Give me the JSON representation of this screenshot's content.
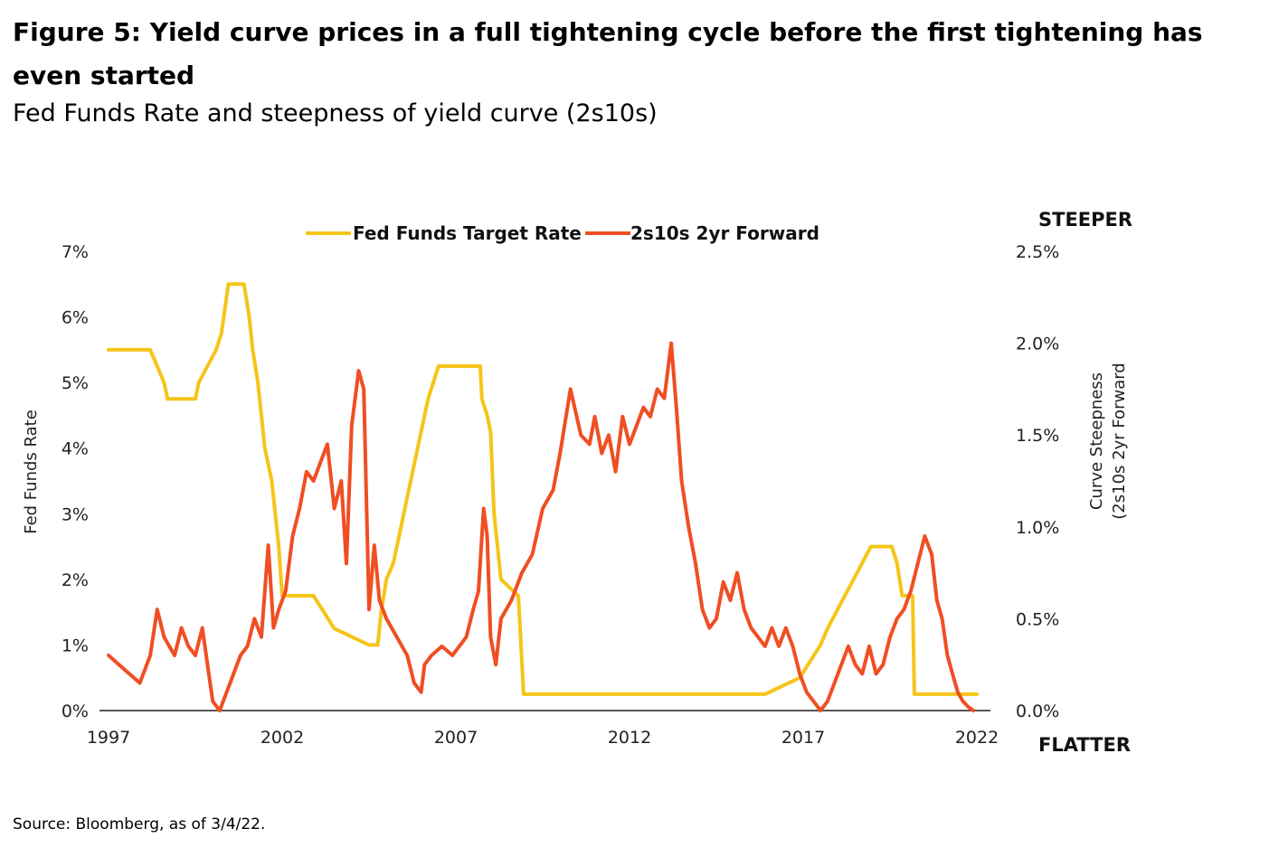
{
  "title": "Figure 5: Yield curve prices in a full tightening cycle before the first tightening has even started",
  "subtitle": "Fed Funds Rate and steepness of yield curve (2s10s)",
  "source": "Source: Bloomberg, as of 3/4/22.",
  "chart_data": {
    "type": "line",
    "x_range": [
      1997,
      2022
    ],
    "x_ticks": [
      "1997",
      "2002",
      "2007",
      "2012",
      "2017",
      "2022"
    ],
    "y_left": {
      "label": "Fed Funds Rate",
      "range": [
        0,
        7
      ],
      "ticks": [
        "0%",
        "1%",
        "2%",
        "3%",
        "4%",
        "5%",
        "6%",
        "7%"
      ]
    },
    "y_right": {
      "label_line1": "Curve Steepness",
      "label_line2": "(2s10s 2yr Forward",
      "range": [
        0,
        2.5
      ],
      "ticks": [
        "0.0%",
        "0.5%",
        "1.0%",
        "1.5%",
        "2.0%",
        "2.5%"
      ]
    },
    "top_right_label": "STEEPER",
    "bottom_right_label": "FLATTER",
    "legend_position": "top-center",
    "grid": false,
    "colors": {
      "fed_funds": "#F5C518",
      "spread": "#F04E23"
    },
    "series": [
      {
        "name": "Fed Funds Target Rate",
        "axis": "left",
        "color": "#F5C518",
        "x": [
          1997.0,
          1998.2,
          1998.6,
          1998.7,
          1998.85,
          1999.5,
          1999.6,
          1999.85,
          2000.1,
          2000.25,
          2000.45,
          2000.9,
          2001.05,
          2001.15,
          2001.3,
          2001.4,
          2001.5,
          2001.6,
          2001.7,
          2001.8,
          2001.9,
          2002.0,
          2002.9,
          2003.5,
          2004.5,
          2004.75,
          2004.85,
          2005.0,
          2005.2,
          2005.4,
          2005.6,
          2005.8,
          2006.0,
          2006.2,
          2006.5,
          2007.7,
          2007.75,
          2007.9,
          2008.0,
          2008.1,
          2008.3,
          2008.8,
          2008.95,
          2015.9,
          2016.9,
          2017.2,
          2017.5,
          2017.7,
          2017.95,
          2018.2,
          2018.45,
          2018.7,
          2018.95,
          2019.55,
          2019.7,
          2019.85,
          2020.15,
          2020.2,
          2022.0
        ],
        "y": [
          5.5,
          5.5,
          5.0,
          4.75,
          4.75,
          4.75,
          5.0,
          5.25,
          5.5,
          5.75,
          6.5,
          6.5,
          6.0,
          5.5,
          5.0,
          4.5,
          4.0,
          3.75,
          3.5,
          3.0,
          2.5,
          1.75,
          1.75,
          1.25,
          1.0,
          1.0,
          1.5,
          2.0,
          2.25,
          2.75,
          3.25,
          3.75,
          4.25,
          4.75,
          5.25,
          5.25,
          4.75,
          4.5,
          4.25,
          3.0,
          2.0,
          1.75,
          0.25,
          0.25,
          0.5,
          0.75,
          1.0,
          1.25,
          1.5,
          1.75,
          2.0,
          2.25,
          2.5,
          2.5,
          2.25,
          1.75,
          1.75,
          0.25,
          0.25
        ]
      },
      {
        "name": "2s10s 2yr Forward",
        "axis": "right",
        "color": "#F04E23",
        "x": [
          1997.0,
          1997.3,
          1997.6,
          1997.9,
          1998.2,
          1998.4,
          1998.6,
          1998.9,
          1999.1,
          1999.3,
          1999.5,
          1999.7,
          1999.85,
          2000.0,
          2000.2,
          2000.4,
          2000.6,
          2000.8,
          2001.0,
          2001.2,
          2001.4,
          2001.6,
          2001.75,
          2001.9,
          2002.1,
          2002.3,
          2002.5,
          2002.7,
          2002.9,
          2003.1,
          2003.3,
          2003.5,
          2003.7,
          2003.85,
          2004.0,
          2004.2,
          2004.35,
          2004.5,
          2004.65,
          2004.8,
          2005.0,
          2005.3,
          2005.6,
          2005.8,
          2006.0,
          2006.1,
          2006.3,
          2006.6,
          2006.9,
          2007.1,
          2007.3,
          2007.5,
          2007.65,
          2007.8,
          2007.9,
          2008.0,
          2008.15,
          2008.3,
          2008.6,
          2008.9,
          2009.2,
          2009.5,
          2009.8,
          2010.0,
          2010.3,
          2010.6,
          2010.85,
          2011.0,
          2011.2,
          2011.4,
          2011.6,
          2011.8,
          2012.0,
          2012.2,
          2012.4,
          2012.6,
          2012.8,
          2013.0,
          2013.2,
          2013.35,
          2013.5,
          2013.7,
          2013.9,
          2014.1,
          2014.3,
          2014.5,
          2014.7,
          2014.9,
          2015.1,
          2015.3,
          2015.5,
          2015.7,
          2015.9,
          2016.1,
          2016.3,
          2016.5,
          2016.7,
          2016.9,
          2017.1,
          2017.3,
          2017.5,
          2017.7,
          2017.9,
          2018.1,
          2018.3,
          2018.5,
          2018.7,
          2018.9,
          2019.1,
          2019.3,
          2019.5,
          2019.7,
          2019.9,
          2020.1,
          2020.3,
          2020.5,
          2020.7,
          2020.85,
          2021.0,
          2021.15,
          2021.3,
          2021.45,
          2021.6,
          2021.75,
          2021.9
        ],
        "y": [
          0.3,
          0.25,
          0.2,
          0.15,
          0.3,
          0.55,
          0.4,
          0.3,
          0.45,
          0.35,
          0.3,
          0.45,
          0.25,
          0.05,
          0.0,
          0.1,
          0.2,
          0.3,
          0.35,
          0.5,
          0.4,
          0.9,
          0.45,
          0.55,
          0.65,
          0.95,
          1.1,
          1.3,
          1.25,
          1.35,
          1.45,
          1.1,
          1.25,
          0.8,
          1.55,
          1.85,
          1.75,
          0.55,
          0.9,
          0.6,
          0.5,
          0.4,
          0.3,
          0.15,
          0.1,
          0.25,
          0.3,
          0.35,
          0.3,
          0.35,
          0.4,
          0.55,
          0.65,
          1.1,
          0.95,
          0.4,
          0.25,
          0.5,
          0.6,
          0.75,
          0.85,
          1.1,
          1.2,
          1.4,
          1.75,
          1.5,
          1.45,
          1.6,
          1.4,
          1.5,
          1.3,
          1.6,
          1.45,
          1.55,
          1.65,
          1.6,
          1.75,
          1.7,
          2.0,
          1.65,
          1.25,
          1.0,
          0.8,
          0.55,
          0.45,
          0.5,
          0.7,
          0.6,
          0.75,
          0.55,
          0.45,
          0.4,
          0.35,
          0.45,
          0.35,
          0.45,
          0.35,
          0.2,
          0.1,
          0.05,
          0.0,
          0.05,
          0.15,
          0.25,
          0.35,
          0.25,
          0.2,
          0.35,
          0.2,
          0.25,
          0.4,
          0.5,
          0.55,
          0.65,
          0.8,
          0.95,
          0.85,
          0.6,
          0.5,
          0.3,
          0.2,
          0.1,
          0.05,
          0.02,
          0.0
        ]
      }
    ]
  }
}
